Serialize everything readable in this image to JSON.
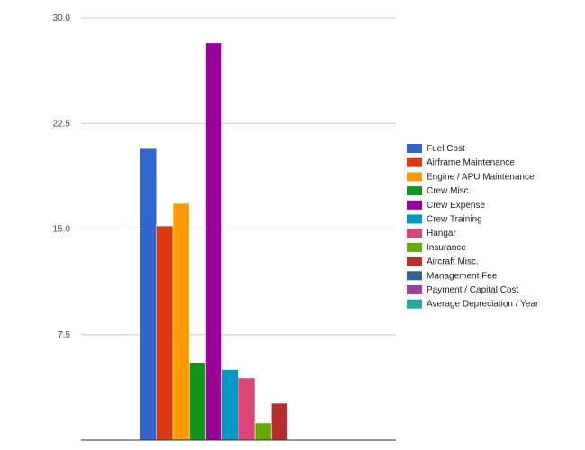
{
  "chart_data": {
    "type": "bar",
    "title": "",
    "xlabel": "",
    "ylabel": "",
    "ylim": [
      0,
      30
    ],
    "yticks": [
      "30.0",
      "22.5",
      "15.0",
      "7.5"
    ],
    "grid": true,
    "legend_position": "right",
    "series": [
      {
        "name": "Fuel Cost",
        "value": 20.7,
        "color": "#3366cc"
      },
      {
        "name": "Airframe Maintenance",
        "value": 15.2,
        "color": "#dc3912"
      },
      {
        "name": "Engine / APU Maintenance",
        "value": 16.8,
        "color": "#ff9900"
      },
      {
        "name": "Crew Misc.",
        "value": 5.5,
        "color": "#109618"
      },
      {
        "name": "Crew Expense",
        "value": 28.2,
        "color": "#990099"
      },
      {
        "name": "Crew Training",
        "value": 5.0,
        "color": "#0099c6"
      },
      {
        "name": "Hangar",
        "value": 4.4,
        "color": "#dd4477"
      },
      {
        "name": "Insurance",
        "value": 1.2,
        "color": "#66aa00"
      },
      {
        "name": "Aircraft Misc.",
        "value": 2.6,
        "color": "#b82e2e"
      },
      {
        "name": "Management Fee",
        "value": 0.0,
        "color": "#316395"
      },
      {
        "name": "Payment / Capital Cost",
        "value": 0.0,
        "color": "#994499"
      },
      {
        "name": "Average Depreciation / Year",
        "value": 0.0,
        "color": "#22aa99"
      }
    ]
  }
}
